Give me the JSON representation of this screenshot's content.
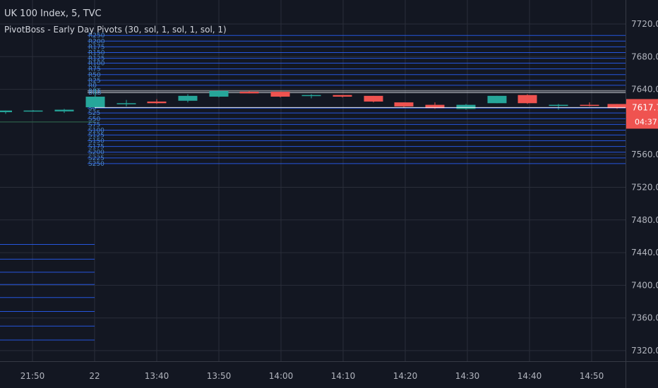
{
  "header": {
    "symbol_line": "UK 100 Index, 5, TVC",
    "indicator_line": "PivotBoss - Early Day Pivots (30, sol, 1, sol, 1, sol, 1)"
  },
  "colors": {
    "background": "#131722",
    "grid": "#2a2e39",
    "axis_text": "#b2b5be",
    "up": "#26a69a",
    "down": "#ef5350",
    "pivot_line": "#2962ff",
    "pivot_label": "#4a87c8",
    "price_line": "#ffffff"
  },
  "price_badge": {
    "price": "7617.7",
    "countdown": "04:37"
  },
  "chart_data": {
    "type": "candlestick",
    "y_axis": {
      "ticks": [
        7720.0,
        7680.0,
        7640.0,
        7600.0,
        7560.0,
        7520.0,
        7480.0,
        7440.0,
        7400.0,
        7360.0,
        7320.0
      ],
      "tick_labels": [
        "7720.0",
        "7680.0",
        "7640.0",
        "7600.0",
        "7560.0",
        "7520.0",
        "7480.0",
        "7440.0",
        "7400.0",
        "7360.0",
        "7320.0"
      ],
      "range": [
        7300,
        7750
      ]
    },
    "x_axis": {
      "labels": [
        "21:50",
        "22",
        "13:40",
        "13:50",
        "14:00",
        "14:10",
        "14:20",
        "14:30",
        "14:40",
        "14:50"
      ]
    },
    "grid": true,
    "current_price": 7617.7,
    "candles": [
      {
        "o": 7612,
        "h": 7614,
        "l": 7610,
        "c": 7614
      },
      {
        "o": 7613.5,
        "h": 7614.5,
        "l": 7612.5,
        "c": 7614
      },
      {
        "o": 7613,
        "h": 7616,
        "l": 7611,
        "c": 7615
      },
      {
        "o": 7618,
        "h": 7641,
        "l": 7617,
        "c": 7631
      },
      {
        "o": 7623,
        "h": 7627,
        "l": 7619,
        "c": 7623
      },
      {
        "o": 7625,
        "h": 7628,
        "l": 7622,
        "c": 7623
      },
      {
        "o": 7626,
        "h": 7634,
        "l": 7624,
        "c": 7632
      },
      {
        "o": 7631,
        "h": 7639,
        "l": 7630,
        "c": 7638
      },
      {
        "o": 7637,
        "h": 7638,
        "l": 7635,
        "c": 7635
      },
      {
        "o": 7637,
        "h": 7637,
        "l": 7630,
        "c": 7631
      },
      {
        "o": 7632,
        "h": 7634,
        "l": 7629,
        "c": 7633
      },
      {
        "o": 7633,
        "h": 7633,
        "l": 7630,
        "c": 7631
      },
      {
        "o": 7632,
        "h": 7632,
        "l": 7624,
        "c": 7625
      },
      {
        "o": 7624,
        "h": 7624,
        "l": 7618,
        "c": 7619
      },
      {
        "o": 7621,
        "h": 7624,
        "l": 7616,
        "c": 7617
      },
      {
        "o": 7616,
        "h": 7622,
        "l": 7615,
        "c": 7621
      },
      {
        "o": 7623,
        "h": 7632,
        "l": 7623,
        "c": 7632
      },
      {
        "o": 7633,
        "h": 7634,
        "l": 7622,
        "c": 7623
      },
      {
        "o": 7621,
        "h": 7622,
        "l": 7615,
        "c": 7621
      },
      {
        "o": 7621,
        "h": 7624,
        "l": 7619,
        "c": 7620
      },
      {
        "o": 7622,
        "h": 7622,
        "l": 7616,
        "c": 7617
      }
    ],
    "pivot_levels": [
      {
        "name": "R250",
        "price": 7706
      },
      {
        "name": "R200",
        "price": 7699
      },
      {
        "name": "R175",
        "price": 7692
      },
      {
        "name": "R150",
        "price": 7685
      },
      {
        "name": "R125",
        "price": 7678
      },
      {
        "name": "R100",
        "price": 7672
      },
      {
        "name": "R75",
        "price": 7665
      },
      {
        "name": "R50",
        "price": 7658
      },
      {
        "name": "R25",
        "price": 7651
      },
      {
        "name": "R0",
        "price": 7645
      },
      {
        "name": "BRT",
        "price": 7638
      },
      {
        "name": "BRB",
        "price": 7636
      },
      {
        "name": "S0",
        "price": 7617
      },
      {
        "name": "S25",
        "price": 7611
      },
      {
        "name": "S50",
        "price": 7604
      },
      {
        "name": "S75",
        "price": 7597
      },
      {
        "name": "S100",
        "price": 7590
      },
      {
        "name": "S125",
        "price": 7584
      },
      {
        "name": "S150",
        "price": 7577
      },
      {
        "name": "S175",
        "price": 7570
      },
      {
        "name": "S200",
        "price": 7563
      },
      {
        "name": "S225",
        "price": 7556
      },
      {
        "name": "S250",
        "price": 7549
      }
    ],
    "prior_levels": [
      7450,
      7432,
      7416,
      7401,
      7385,
      7368,
      7350,
      7333
    ]
  }
}
